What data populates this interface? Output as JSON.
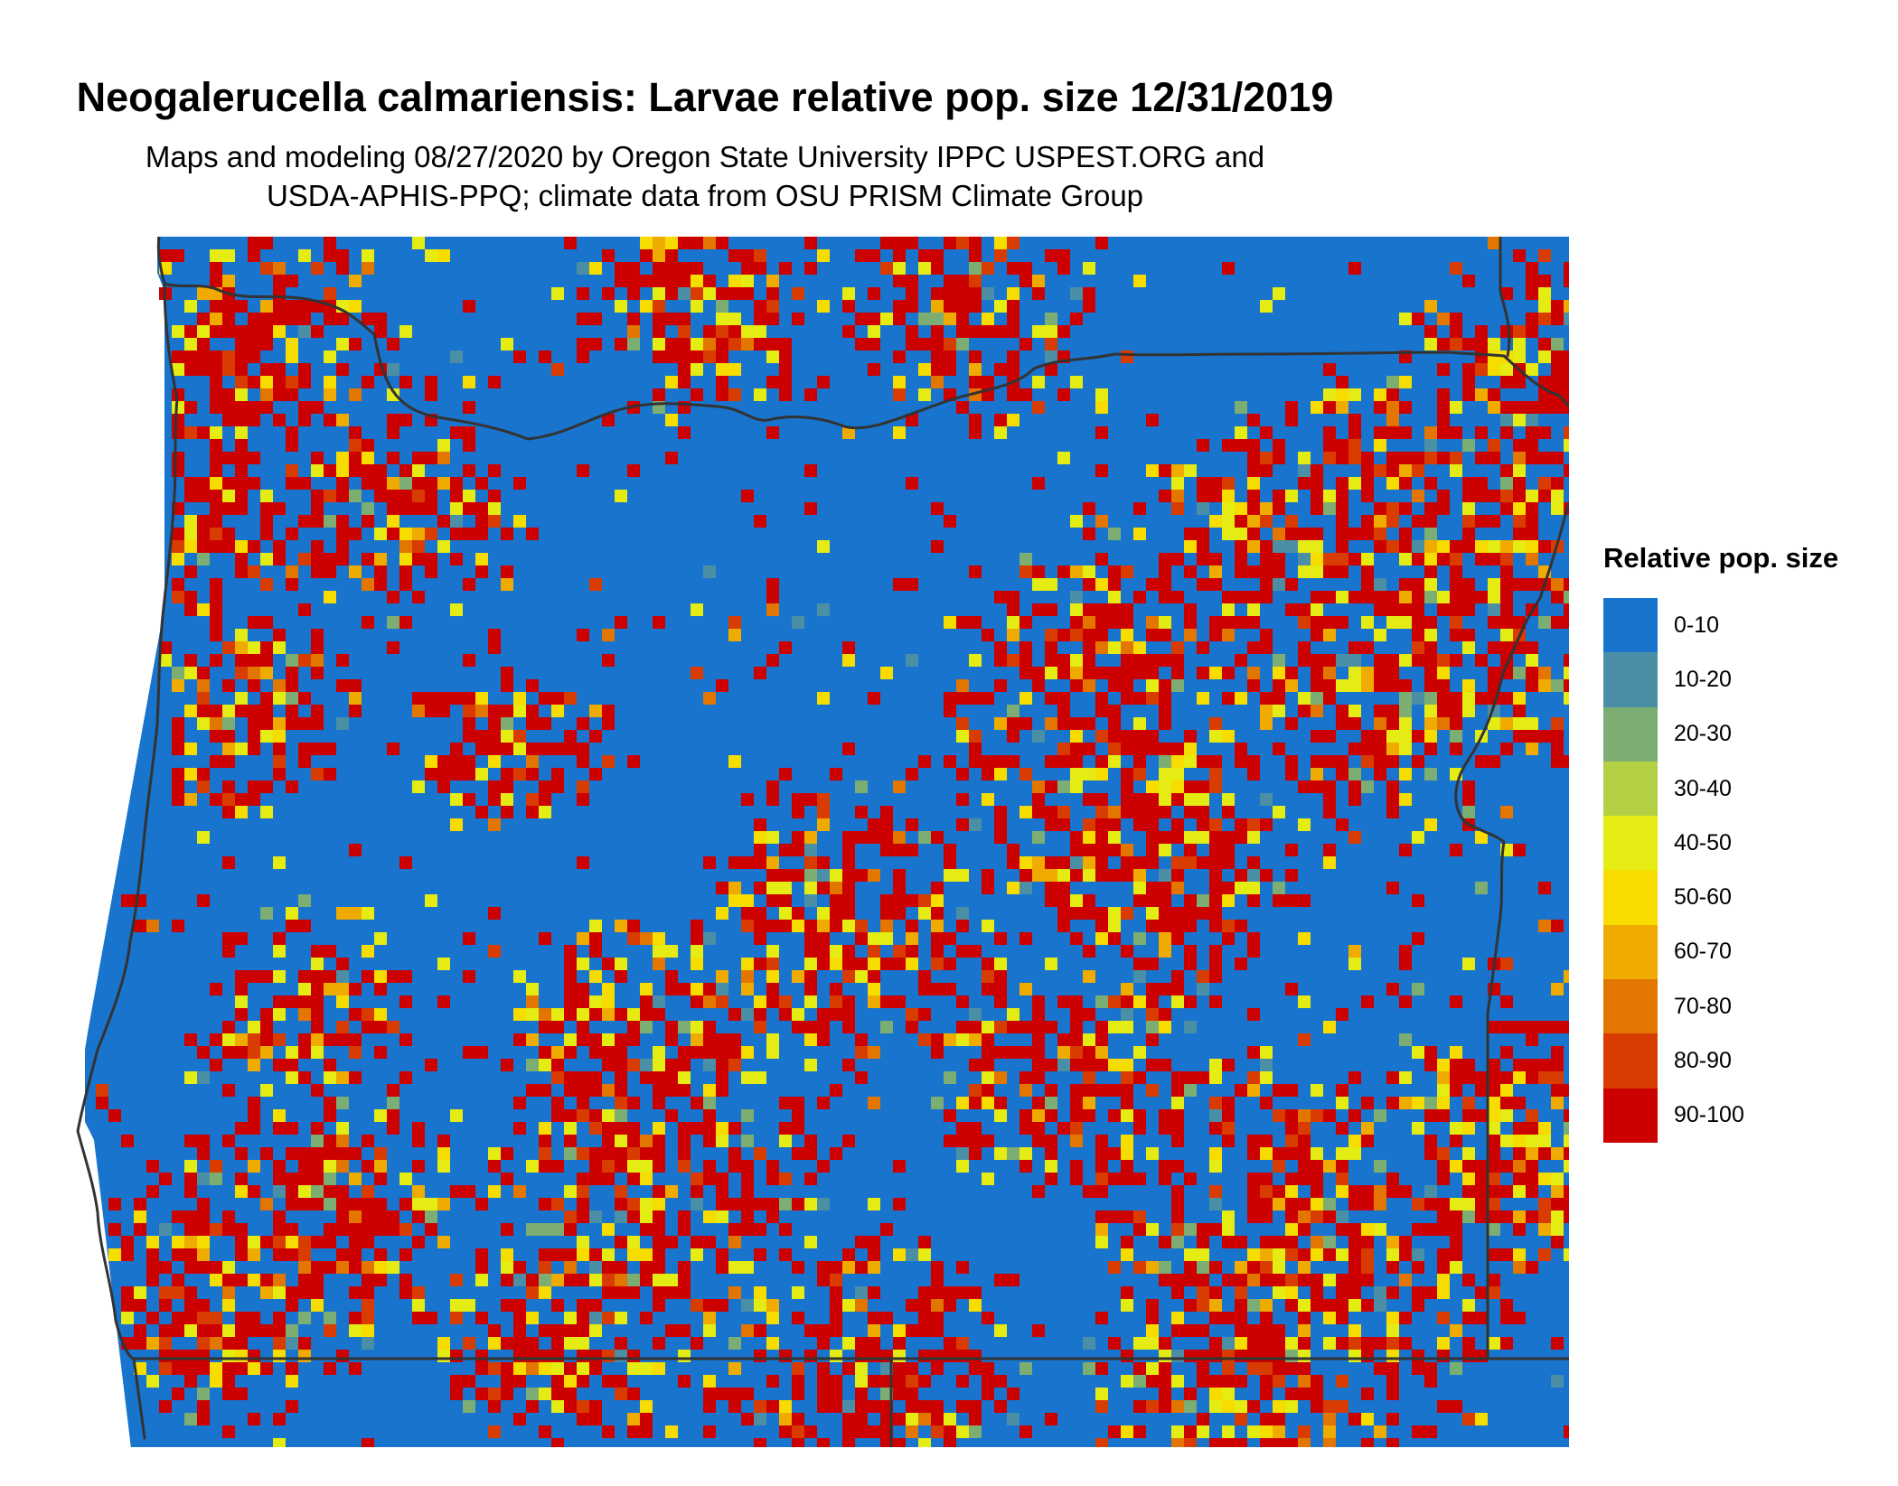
{
  "title": "Neogalerucella calmariensis: Larvae relative pop. size 12/31/2019",
  "subtitle_lines": [
    "Maps and modeling 08/27/2020 by Oregon State University IPPC USPEST.ORG and",
    "USDA-APHIS-PPQ; climate data from OSU PRISM Climate Group"
  ],
  "legend": {
    "title": "Relative pop. size",
    "items": [
      {
        "label": "0-10",
        "color": "#1874cd"
      },
      {
        "label": "10-20",
        "color": "#4b8fa6"
      },
      {
        "label": "20-30",
        "color": "#7cad73"
      },
      {
        "label": "30-40",
        "color": "#b3cf44"
      },
      {
        "label": "40-50",
        "color": "#e4ec14"
      },
      {
        "label": "50-60",
        "color": "#f7dc00"
      },
      {
        "label": "60-70",
        "color": "#efab00"
      },
      {
        "label": "70-80",
        "color": "#e27600"
      },
      {
        "label": "80-90",
        "color": "#d93c00"
      },
      {
        "label": "90-100",
        "color": "#cd0000"
      }
    ]
  },
  "map": {
    "region": "Oregon",
    "boundary_color": "#333333",
    "background_class_color": "#1874cd"
  }
}
